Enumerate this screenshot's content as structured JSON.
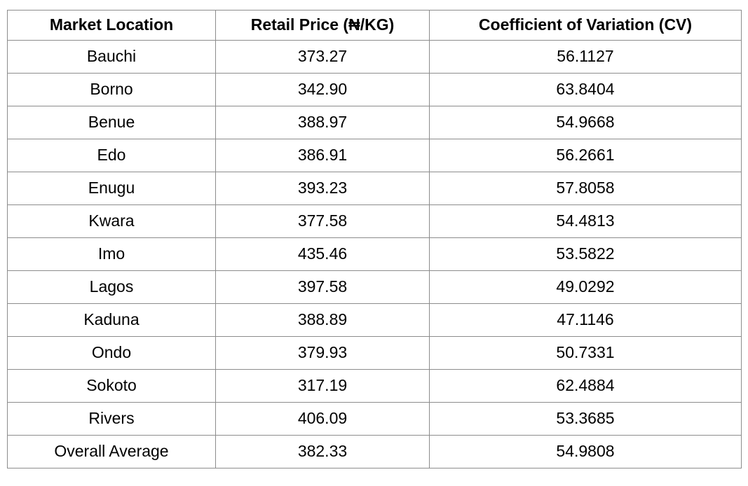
{
  "table": {
    "columns": {
      "location": "Market Location",
      "price": "Retail Price (₦/KG)",
      "cv": "Coefficient of Variation (CV)"
    },
    "rows": [
      {
        "location": "Bauchi",
        "price": "373.27",
        "cv": "56.1127"
      },
      {
        "location": "Borno",
        "price": "342.90",
        "cv": "63.8404"
      },
      {
        "location": "Benue",
        "price": "388.97",
        "cv": "54.9668"
      },
      {
        "location": "Edo",
        "price": "386.91",
        "cv": "56.2661"
      },
      {
        "location": "Enugu",
        "price": "393.23",
        "cv": "57.8058"
      },
      {
        "location": "Kwara",
        "price": "377.58",
        "cv": "54.4813"
      },
      {
        "location": "Imo",
        "price": "435.46",
        "cv": "53.5822"
      },
      {
        "location": "Lagos",
        "price": "397.58",
        "cv": "49.0292"
      },
      {
        "location": "Kaduna",
        "price": "388.89",
        "cv": "47.1146"
      },
      {
        "location": "Ondo",
        "price": "379.93",
        "cv": "50.7331"
      },
      {
        "location": "Sokoto",
        "price": "317.19",
        "cv": "62.4884"
      },
      {
        "location": "Rivers",
        "price": "406.09",
        "cv": "53.3685"
      },
      {
        "location": "Overall Average",
        "price": "382.33",
        "cv": "54.9808"
      }
    ]
  }
}
